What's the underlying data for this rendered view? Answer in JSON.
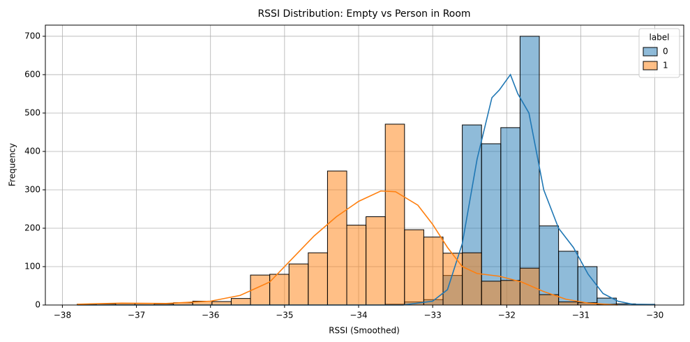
{
  "chart_data": {
    "type": "histogram",
    "title": "RSSI Distribution: Empty vs Person in Room",
    "xlabel": "RSSI (Smoothed)",
    "ylabel": "Frequency",
    "bins": [
      -37.8,
      -37.54,
      -37.28,
      -37.02,
      -36.76,
      -36.5,
      -36.24,
      -35.98,
      -35.72,
      -35.46,
      -35.2,
      -34.94,
      -34.68,
      -34.42,
      -34.16,
      -33.9,
      -33.64,
      -33.38,
      -33.12,
      -32.86,
      -32.6,
      -32.34,
      -32.08,
      -31.82,
      -31.56,
      -31.3,
      -31.04,
      -30.78,
      -30.52,
      -30.26,
      -30.0
    ],
    "series": [
      {
        "name": "0",
        "color": "#1f77b4",
        "values": [
          0,
          0,
          0,
          0,
          0,
          0,
          0,
          0,
          0,
          0,
          0,
          0,
          0,
          0,
          0,
          0,
          2,
          8,
          14,
          77,
          469,
          420,
          462,
          700,
          206,
          140,
          100,
          18,
          3,
          2
        ],
        "kde_x": [
          -37.8,
          -33.4,
          -33.0,
          -32.8,
          -32.6,
          -32.4,
          -32.2,
          -32.1,
          -31.95,
          -31.85,
          -31.7,
          -31.5,
          -31.3,
          -31.1,
          -30.9,
          -30.7,
          -30.5,
          -30.3,
          -30.0
        ],
        "kde_y": [
          0,
          0,
          10,
          40,
          160,
          380,
          540,
          560,
          600,
          550,
          500,
          300,
          200,
          150,
          80,
          30,
          10,
          2,
          1
        ]
      },
      {
        "name": "1",
        "color": "#ff7f0e",
        "values": [
          2,
          3,
          4,
          4,
          3,
          6,
          10,
          9,
          17,
          78,
          80,
          107,
          136,
          349,
          208,
          230,
          471,
          196,
          177,
          135,
          136,
          62,
          64,
          96,
          27,
          8,
          6,
          2,
          0,
          0
        ],
        "kde_x": [
          -37.8,
          -37.2,
          -36.6,
          -36.0,
          -35.6,
          -35.2,
          -34.9,
          -34.6,
          -34.3,
          -34.0,
          -33.7,
          -33.5,
          -33.2,
          -33.0,
          -32.8,
          -32.6,
          -32.4,
          -32.1,
          -31.8,
          -31.5,
          -31.2,
          -30.9,
          -30.5
        ],
        "kde_y": [
          2,
          5,
          4,
          10,
          25,
          60,
          120,
          180,
          230,
          270,
          297,
          295,
          260,
          210,
          150,
          100,
          82,
          75,
          60,
          35,
          15,
          5,
          0
        ]
      }
    ],
    "legend_title": "label",
    "legend": "upper right",
    "xlim": [
      -38.23,
      -29.61
    ],
    "xticks": [
      {
        "value": -38,
        "label": "−38"
      },
      {
        "value": -37,
        "label": "−37"
      },
      {
        "value": -36,
        "label": "−36"
      },
      {
        "value": -35,
        "label": "−35"
      },
      {
        "value": -34,
        "label": "−34"
      },
      {
        "value": -33,
        "label": "−33"
      },
      {
        "value": -32,
        "label": "−32"
      },
      {
        "value": -31,
        "label": "−31"
      },
      {
        "value": -30,
        "label": "−30"
      }
    ],
    "ylim": [
      0,
      729
    ],
    "yticks": [
      0,
      100,
      200,
      300,
      400,
      500,
      600,
      700
    ],
    "grid": true
  }
}
